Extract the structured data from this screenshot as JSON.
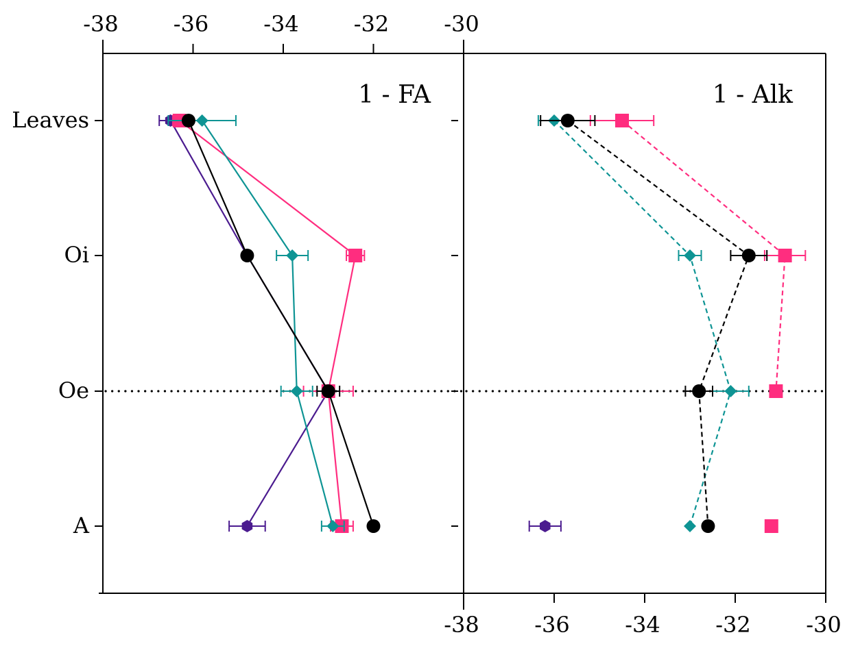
{
  "chart_data": [
    {
      "type": "scatter",
      "panel_label": "1 - FA",
      "xlim": [
        -38,
        -30
      ],
      "x_ticks": [
        "-38",
        "-36",
        "-34",
        "-32",
        "-30"
      ],
      "x_axis_position": "top",
      "categories": [
        "Leaves",
        "Oi",
        "Oe",
        "A"
      ],
      "reference_line": "Oe",
      "line_style": "solid",
      "series": [
        {
          "key": "purple",
          "color": "#4b1b8f",
          "marker": "hexagon",
          "x": [
            -36.5,
            -34.8,
            -33.0,
            -34.8
          ],
          "err": [
            0.25,
            0.0,
            0.0,
            0.4
          ],
          "connected": [
            true,
            true,
            true,
            true
          ]
        },
        {
          "key": "pink",
          "color": "#ff2d7f",
          "marker": "square",
          "x": [
            -36.3,
            -32.4,
            -33.0,
            -32.7
          ],
          "err": [
            0.15,
            0.2,
            0.55,
            0.25
          ],
          "connected": [
            true,
            true,
            true,
            true
          ]
        },
        {
          "key": "teal",
          "color": "#0e9494",
          "marker": "diamond",
          "x": [
            -35.8,
            -33.8,
            -33.7,
            -32.9
          ],
          "err": [
            0.75,
            0.35,
            0.35,
            0.25
          ],
          "connected": [
            true,
            true,
            true,
            true
          ]
        },
        {
          "key": "black",
          "color": "#000000",
          "marker": "circle",
          "x": [
            -36.1,
            -34.8,
            -33.0,
            -32.0
          ],
          "err": [
            0.0,
            0.0,
            0.25,
            0.0
          ],
          "connected": [
            true,
            true,
            true,
            true
          ]
        }
      ]
    },
    {
      "type": "scatter",
      "panel_label": "1 - Alk",
      "xlim": [
        -38,
        -30
      ],
      "x_ticks": [
        "-38",
        "-36",
        "-34",
        "-32",
        "-30"
      ],
      "x_axis_position": "bottom",
      "categories": [
        "Leaves",
        "Oi",
        "Oe",
        "A"
      ],
      "reference_line": "Oe",
      "line_style": "dashed",
      "series": [
        {
          "key": "purple",
          "color": "#4b1b8f",
          "marker": "hexagon",
          "x": [
            null,
            null,
            null,
            -36.2
          ],
          "err": [
            0,
            0,
            0,
            0.35
          ],
          "connected": [
            false,
            false,
            false,
            false
          ]
        },
        {
          "key": "pink",
          "color": "#ff2d7f",
          "marker": "square",
          "x": [
            -34.5,
            -30.9,
            -31.1,
            -31.2
          ],
          "err": [
            0.7,
            0.45,
            0.0,
            0.0
          ],
          "connected": [
            true,
            true,
            true,
            false
          ]
        },
        {
          "key": "teal",
          "color": "#0e9494",
          "marker": "diamond",
          "x": [
            -36.0,
            -33.0,
            -32.1,
            -33.0
          ],
          "err": [
            0.35,
            0.25,
            0.4,
            0.0
          ],
          "connected": [
            true,
            true,
            true,
            true
          ]
        },
        {
          "key": "black",
          "color": "#000000",
          "marker": "circle",
          "x": [
            -35.7,
            -31.7,
            -32.8,
            -32.6
          ],
          "err": [
            0.6,
            0.4,
            0.3,
            0.0
          ],
          "connected": [
            true,
            true,
            true,
            true
          ]
        }
      ]
    }
  ]
}
